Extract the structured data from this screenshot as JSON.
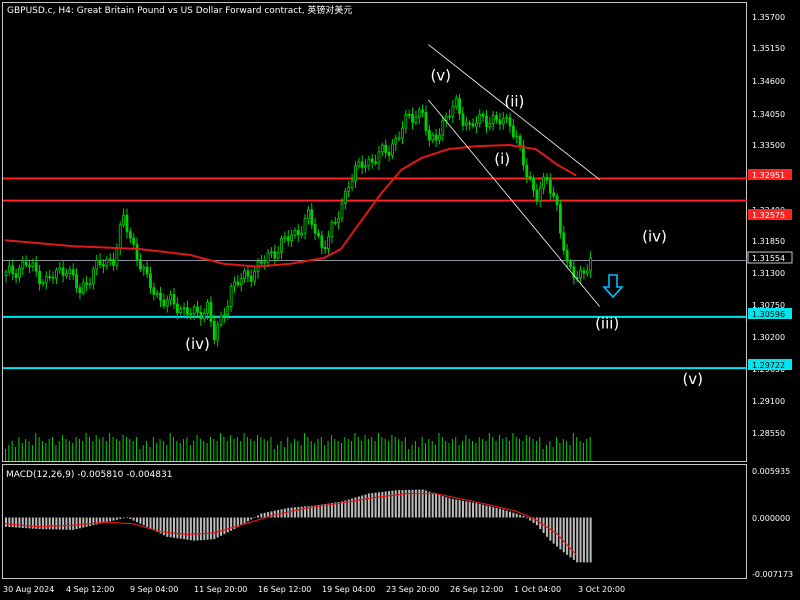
{
  "header": {
    "title": "GBPUSD.c, H4:  Great Britain Pound vs US Dollar Forward contract, 英镑对美元"
  },
  "colors": {
    "background": "#000000",
    "candles": "#00d100",
    "red_levels": "#ff2222",
    "ma_line": "#e01818",
    "cyan_levels": "#00e5ee",
    "current_price_line": "#8a8fa0",
    "channel": "#ffffff",
    "macd_histogram": "#bdbdbd",
    "macd_signal": "#e01818",
    "arrow": "#00bfff"
  },
  "price_axis": {
    "ticks": [
      "1.35700",
      "1.35150",
      "1.34600",
      "1.34050",
      "1.33500",
      "1.32950",
      "1.32400",
      "1.31850",
      "1.31300",
      "1.30750",
      "1.30200",
      "1.29650",
      "1.29100",
      "1.28550"
    ],
    "labels": {
      "red_upper": "1.32951",
      "red_lower": "1.32575",
      "current": "1.31554",
      "cyan_upper": "1.30596",
      "cyan_lower": "1.29722"
    }
  },
  "macd": {
    "label": "MACD(12,26,9) -0.005810 -0.004831",
    "ticks": [
      "0.005935",
      "0.000000",
      "-0.007173"
    ]
  },
  "time_axis": {
    "labels": [
      "30 Aug 2024",
      "4 Sep 12:00",
      "9 Sep 04:00",
      "11 Sep 20:00",
      "16 Sep 12:00",
      "19 Sep 04:00",
      "23 Sep 20:00",
      "26 Sep 12:00",
      "1 Oct 04:00",
      "3 Oct 20:00"
    ]
  },
  "waves": {
    "iv_low": "(iv)",
    "v_top": "(v)",
    "ii": "(ii)",
    "i": "(i)",
    "iii": "(iii)",
    "iv_target": "(iv)",
    "v_target": "(v)"
  },
  "chart_data": {
    "type": "candlestick",
    "symbol": "GBPUSD.c",
    "timeframe": "H4",
    "x_range": [
      "30 Aug 2024",
      "3 Oct 20:00"
    ],
    "ylim": [
      1.282,
      1.359
    ],
    "price_path": [
      [
        0,
        1.313
      ],
      [
        6,
        1.315
      ],
      [
        12,
        1.312
      ],
      [
        18,
        1.3145
      ],
      [
        22,
        1.31
      ],
      [
        26,
        1.314
      ],
      [
        32,
        1.316
      ],
      [
        35,
        1.3225
      ],
      [
        38,
        1.318
      ],
      [
        42,
        1.312
      ],
      [
        46,
        1.309
      ],
      [
        50,
        1.308
      ],
      [
        54,
        1.307
      ],
      [
        57,
        1.306
      ],
      [
        60,
        1.308
      ],
      [
        62,
        1.3025
      ],
      [
        64,
        1.305
      ],
      [
        67,
        1.311
      ],
      [
        72,
        1.313
      ],
      [
        78,
        1.316
      ],
      [
        82,
        1.3185
      ],
      [
        86,
        1.32
      ],
      [
        90,
        1.323
      ],
      [
        94,
        1.318
      ],
      [
        98,
        1.3215
      ],
      [
        102,
        1.329
      ],
      [
        106,
        1.332
      ],
      [
        110,
        1.333
      ],
      [
        114,
        1.3345
      ],
      [
        118,
        1.338
      ],
      [
        120,
        1.34
      ],
      [
        124,
        1.341
      ],
      [
        126,
        1.335
      ],
      [
        130,
        1.339
      ],
      [
        134,
        1.342
      ],
      [
        138,
        1.338
      ],
      [
        142,
        1.34
      ],
      [
        146,
        1.339
      ],
      [
        150,
        1.3395
      ],
      [
        152,
        1.336
      ],
      [
        155,
        1.33
      ],
      [
        158,
        1.327
      ],
      [
        161,
        1.329
      ],
      [
        164,
        1.325
      ],
      [
        167,
        1.314
      ],
      [
        170,
        1.313
      ],
      [
        174,
        1.315
      ]
    ],
    "moving_average": [
      [
        0,
        1.319
      ],
      [
        20,
        1.318
      ],
      [
        40,
        1.3175
      ],
      [
        55,
        1.3165
      ],
      [
        65,
        1.315
      ],
      [
        75,
        1.3145
      ],
      [
        85,
        1.315
      ],
      [
        95,
        1.316
      ],
      [
        100,
        1.3175
      ],
      [
        105,
        1.3215
      ],
      [
        112,
        1.327
      ],
      [
        118,
        1.331
      ],
      [
        124,
        1.333
      ],
      [
        132,
        1.3345
      ],
      [
        140,
        1.335
      ],
      [
        150,
        1.3352
      ],
      [
        158,
        1.3345
      ],
      [
        164,
        1.332
      ],
      [
        170,
        1.33
      ]
    ],
    "horizontal_levels": [
      {
        "price": 1.32951,
        "color": "red"
      },
      {
        "price": 1.32575,
        "color": "red"
      },
      {
        "price": 1.31554,
        "color": "gray"
      },
      {
        "price": 1.30596,
        "color": "cyan"
      },
      {
        "price": 1.29722,
        "color": "cyan"
      }
    ],
    "channel": {
      "upper": [
        [
          126,
          1.3523
        ],
        [
          177,
          1.3293
        ]
      ],
      "lower": [
        [
          126,
          1.3429
        ],
        [
          177,
          1.3077
        ]
      ]
    },
    "wave_labels": [
      {
        "text": "(iv)",
        "bar": 56,
        "price": 1.3005
      },
      {
        "text": "(v)",
        "bar": 129,
        "price": 1.3462
      },
      {
        "text": "(ii)",
        "bar": 151,
        "price": 1.3418
      },
      {
        "text": "(i)",
        "bar": 148,
        "price": 1.332
      },
      {
        "text": "(iii)",
        "bar": 178,
        "price": 1.304
      },
      {
        "text": "(iv)",
        "bar": 192,
        "price": 1.3188
      },
      {
        "text": "(v)",
        "bar": 204,
        "price": 1.2945
      }
    ],
    "volume_heights": [
      0.3,
      0.4,
      0.5,
      0.35,
      0.6,
      0.45,
      0.55,
      0.5,
      0.4,
      0.7,
      0.6,
      0.5,
      0.45,
      0.55,
      0.6,
      0.4,
      0.5,
      0.65,
      0.55,
      0.5,
      0.45,
      0.6,
      0.55,
      0.5,
      0.7,
      0.6,
      0.5,
      0.65,
      0.55,
      0.6,
      0.5,
      0.7,
      0.6,
      0.55,
      0.5,
      0.65,
      0.6,
      0.55,
      0.5,
      0.6
    ],
    "macd_histogram": [
      [
        0,
        -0.0012
      ],
      [
        10,
        -0.0015
      ],
      [
        20,
        -0.0016
      ],
      [
        30,
        -0.0006
      ],
      [
        36,
        0.0
      ],
      [
        40,
        -0.0008
      ],
      [
        48,
        -0.0025
      ],
      [
        56,
        -0.003
      ],
      [
        62,
        -0.0028
      ],
      [
        68,
        -0.0015
      ],
      [
        76,
        0.0005
      ],
      [
        84,
        0.0012
      ],
      [
        92,
        0.0015
      ],
      [
        100,
        0.002
      ],
      [
        108,
        0.003
      ],
      [
        116,
        0.0034
      ],
      [
        124,
        0.0035
      ],
      [
        132,
        0.0024
      ],
      [
        140,
        0.0018
      ],
      [
        148,
        0.001
      ],
      [
        154,
        0.0002
      ],
      [
        158,
        -0.001
      ],
      [
        162,
        -0.003
      ],
      [
        166,
        -0.0045
      ],
      [
        170,
        -0.0058
      ]
    ],
    "macd_signal": [
      [
        0,
        -0.0008
      ],
      [
        10,
        -0.0012
      ],
      [
        20,
        -0.001
      ],
      [
        30,
        -0.0006
      ],
      [
        38,
        -0.0008
      ],
      [
        46,
        -0.0018
      ],
      [
        54,
        -0.0022
      ],
      [
        62,
        -0.002
      ],
      [
        70,
        -0.001
      ],
      [
        80,
        0.0003
      ],
      [
        90,
        0.0012
      ],
      [
        100,
        0.0018
      ],
      [
        110,
        0.0025
      ],
      [
        120,
        0.003
      ],
      [
        128,
        0.003
      ],
      [
        136,
        0.0023
      ],
      [
        144,
        0.0016
      ],
      [
        152,
        0.0008
      ],
      [
        158,
        -0.0003
      ],
      [
        164,
        -0.002
      ],
      [
        170,
        -0.0048
      ]
    ]
  }
}
